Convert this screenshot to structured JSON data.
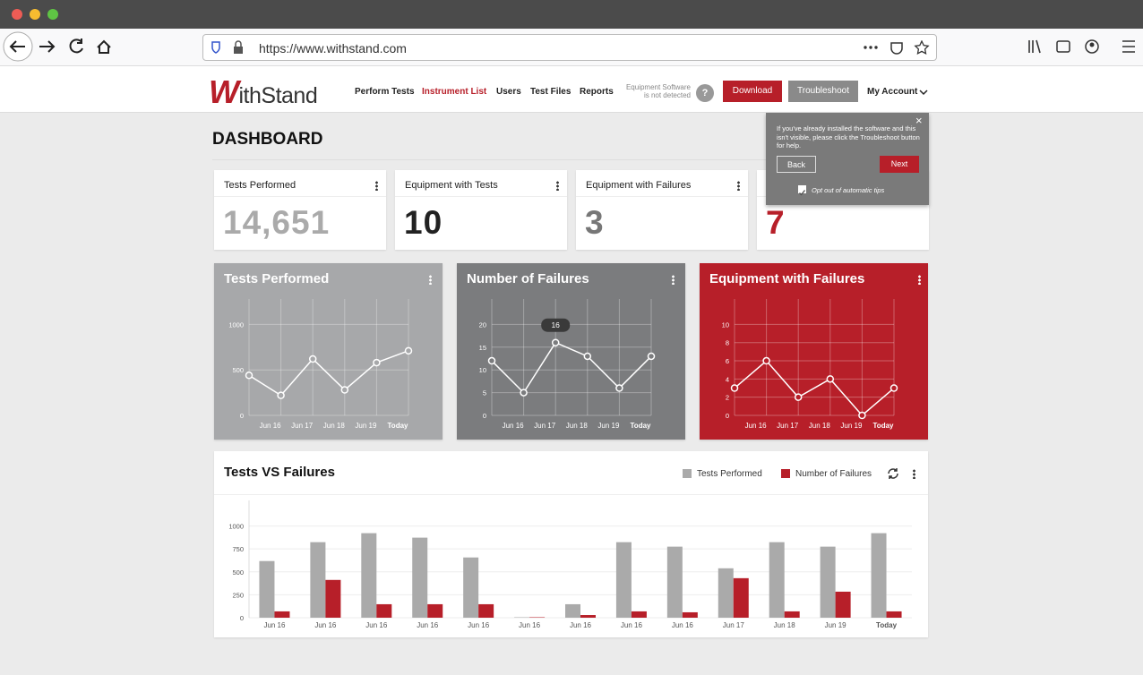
{
  "browser": {
    "url": "https://www.withstand.com"
  },
  "nav": {
    "logo": "WithStand",
    "links": [
      "Perform Tests",
      "Instrument List",
      "Users",
      "Test Files",
      "Reports"
    ],
    "status": [
      "Equipment Software",
      "is not detected"
    ],
    "help": "?",
    "download": "Download",
    "troubleshoot": "Troubleshoot",
    "account": "My Account"
  },
  "tip": {
    "text": "If you've already installed the software and this isn't visible, please click the Troubleshoot button for help.",
    "back": "Back",
    "next": "Next",
    "opt_out": "Opt out of automatic tips"
  },
  "page_title": "DASHBOARD",
  "cards": [
    {
      "title": "Tests Performed",
      "value": "14,651"
    },
    {
      "title": "Equipment with Tests",
      "value": "10"
    },
    {
      "title": "Equipment with Failures",
      "value": "3"
    },
    {
      "value": "7"
    }
  ],
  "chart_data": [
    {
      "type": "line",
      "title": "Tests Performed",
      "background": "#a7a8aa",
      "color": "#ffffff",
      "grid": true,
      "categories": [
        null,
        "Jun 16",
        "Jun 17",
        "Jun 18",
        "Jun 19",
        "Today"
      ],
      "values": [
        440,
        220,
        620,
        280,
        580,
        710
      ],
      "ylim": [
        0,
        1240
      ],
      "yticks": [
        0,
        500,
        1000
      ]
    },
    {
      "type": "line",
      "title": "Number of Failures",
      "background": "#7b7c7e",
      "color": "#ffffff",
      "grid": true,
      "categories": [
        null,
        "Jun 16",
        "Jun 17",
        "Jun 18",
        "Jun 19",
        "Today"
      ],
      "values": [
        12,
        5,
        16,
        13,
        6,
        13
      ],
      "ylim": [
        0,
        24.8
      ],
      "yticks": [
        0,
        5,
        10,
        15,
        20
      ]
    },
    {
      "type": "line",
      "title": "Equipment with Failures",
      "background": "#b71f29",
      "color": "#ffffff",
      "grid": true,
      "categories": [
        null,
        "Jun 16",
        "Jun 17",
        "Jun 18",
        "Jun 19",
        "Today"
      ],
      "values": [
        3,
        6,
        2,
        4,
        0,
        3
      ],
      "ylim": [
        0,
        12.4
      ],
      "yticks": [
        0,
        2,
        4,
        6,
        8,
        10
      ]
    },
    {
      "type": "bar",
      "title": "Tests VS Failures",
      "grid": true,
      "categories": [
        "Jun 16",
        "Jun 16",
        "Jun 16",
        "Jun 16",
        "Jun 16",
        "Jun 16",
        "Jun 16",
        "Jun 16",
        "Jun 16",
        "Jun 17",
        "Jun 18",
        "Jun 19",
        "Today"
      ],
      "series": [
        {
          "name": "Tests Performed",
          "color": "#aaaaaa",
          "values": [
            618,
            824,
            922,
            873,
            657,
            5,
            147,
            824,
            775,
            539,
            824,
            775,
            922
          ]
        },
        {
          "name": "Number of Failures",
          "color": "#b71f29",
          "values": [
            69,
            412,
            147,
            147,
            147,
            5,
            29,
            69,
            59,
            431,
            69,
            284,
            69
          ]
        }
      ],
      "ylim": [
        0,
        1240
      ],
      "yticks": [
        0,
        250,
        500,
        750,
        1000
      ]
    }
  ]
}
